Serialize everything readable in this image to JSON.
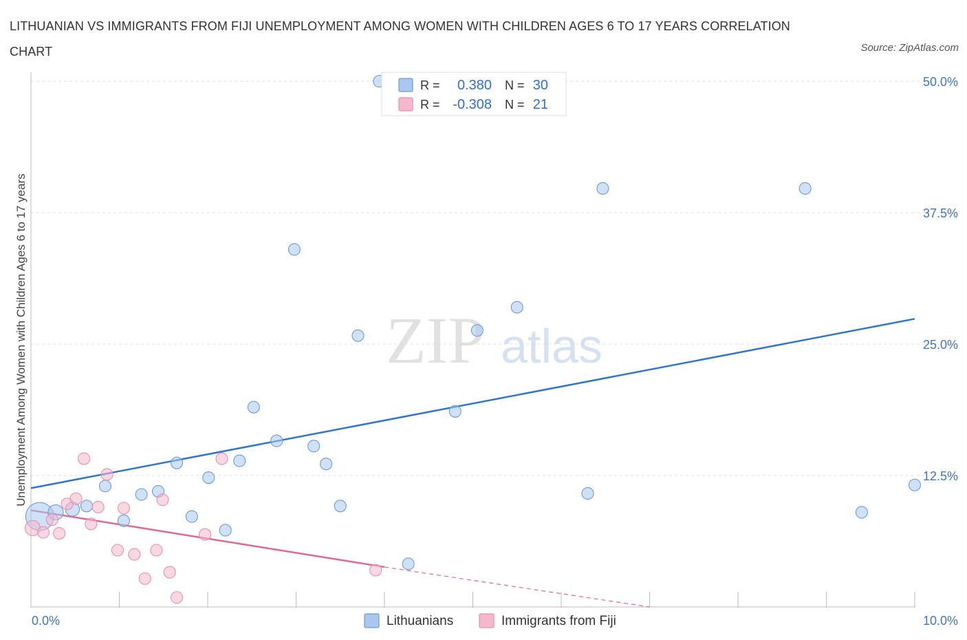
{
  "title": "LITHUANIAN VS IMMIGRANTS FROM FIJI UNEMPLOYMENT AMONG WOMEN WITH CHILDREN AGES 6 TO 17 YEARS CORRELATION CHART",
  "source": "Source: ZipAtlas.com",
  "watermark": {
    "zip": "ZIP",
    "atlas": "atlas"
  },
  "stats_legend": [
    {
      "series": "Lithuanians",
      "r_label": "R =",
      "r_value": "0.380",
      "n_label": "N =",
      "n_value": "30",
      "color": "#a8c8f0"
    },
    {
      "series": "Immigrants from Fiji",
      "r_label": "R =",
      "r_value": "-0.308",
      "n_label": "N =",
      "n_value": "21",
      "color": "#f4b8cb"
    }
  ],
  "bottom_legend": [
    "Lithuanians",
    "Immigrants from Fiji"
  ],
  "chart_data": {
    "type": "scatter",
    "title": "LITHUANIAN VS IMMIGRANTS FROM FIJI UNEMPLOYMENT AMONG WOMEN WITH CHILDREN AGES 6 TO 17 YEARS CORRELATION CHART",
    "xlabel": "",
    "ylabel": "Unemployment Among Women with Children Ages 6 to 17 years",
    "xlim": [
      0,
      10
    ],
    "ylim": [
      0,
      50
    ],
    "x_tick_labels": [
      "0.0%",
      "10.0%"
    ],
    "y_tick_labels": [
      "12.5%",
      "25.0%",
      "37.5%",
      "50.0%"
    ],
    "y_ticks": [
      12.5,
      25.0,
      37.5,
      50.0
    ],
    "grid": true,
    "legend_position": "bottom-center",
    "series": [
      {
        "name": "Lithuanians",
        "color": "#a8c8f0",
        "stroke": "#6d9ad4",
        "line_color": "#2f74d0",
        "trend": {
          "x": [
            0,
            10
          ],
          "y": [
            11.3,
            27.4
          ]
        },
        "points": [
          {
            "x": 0.1,
            "y": 8.6,
            "s": 2.4
          },
          {
            "x": 0.28,
            "y": 9.0,
            "s": 1.3
          },
          {
            "x": 0.47,
            "y": 9.3,
            "s": 1.2
          },
          {
            "x": 0.63,
            "y": 9.6,
            "s": 1.0
          },
          {
            "x": 0.84,
            "y": 11.5,
            "s": 1.0
          },
          {
            "x": 1.05,
            "y": 8.2,
            "s": 1.0
          },
          {
            "x": 1.25,
            "y": 10.7,
            "s": 1.0
          },
          {
            "x": 1.44,
            "y": 11.0,
            "s": 1.0
          },
          {
            "x": 1.65,
            "y": 13.7,
            "s": 1.0
          },
          {
            "x": 1.82,
            "y": 8.6,
            "s": 1.0
          },
          {
            "x": 2.01,
            "y": 12.3,
            "s": 1.0
          },
          {
            "x": 2.2,
            "y": 7.3,
            "s": 1.0
          },
          {
            "x": 2.36,
            "y": 13.9,
            "s": 1.0
          },
          {
            "x": 2.52,
            "y": 19.0,
            "s": 1.0
          },
          {
            "x": 2.78,
            "y": 15.8,
            "s": 1.0
          },
          {
            "x": 2.98,
            "y": 34.0,
            "s": 1.0
          },
          {
            "x": 3.2,
            "y": 15.3,
            "s": 1.0
          },
          {
            "x": 3.34,
            "y": 13.6,
            "s": 1.0
          },
          {
            "x": 3.5,
            "y": 9.6,
            "s": 1.0
          },
          {
            "x": 3.7,
            "y": 25.8,
            "s": 1.0
          },
          {
            "x": 3.94,
            "y": 50.0,
            "s": 1.0
          },
          {
            "x": 4.27,
            "y": 4.1,
            "s": 1.0
          },
          {
            "x": 4.8,
            "y": 18.6,
            "s": 1.0
          },
          {
            "x": 5.05,
            "y": 26.3,
            "s": 1.0
          },
          {
            "x": 5.5,
            "y": 28.5,
            "s": 1.0
          },
          {
            "x": 6.3,
            "y": 10.8,
            "s": 1.0
          },
          {
            "x": 6.47,
            "y": 39.8,
            "s": 1.0
          },
          {
            "x": 8.76,
            "y": 39.8,
            "s": 1.0
          },
          {
            "x": 9.4,
            "y": 9.0,
            "s": 1.0
          },
          {
            "x": 10.0,
            "y": 11.6,
            "s": 1.0
          }
        ]
      },
      {
        "name": "Immigrants from Fiji",
        "color": "#f4b8cb",
        "stroke": "#e690ae",
        "line_color": "#e0678f",
        "trend": {
          "x": [
            0,
            4.0
          ],
          "y": [
            9.2,
            3.8
          ]
        },
        "trend_dashed": {
          "x": [
            4.0,
            7.0
          ],
          "y": [
            3.8,
            0
          ]
        },
        "points": [
          {
            "x": 0.02,
            "y": 7.5,
            "s": 1.3
          },
          {
            "x": 0.14,
            "y": 7.1,
            "s": 1.0
          },
          {
            "x": 0.24,
            "y": 8.3,
            "s": 1.0
          },
          {
            "x": 0.32,
            "y": 7.0,
            "s": 1.0
          },
          {
            "x": 0.41,
            "y": 9.8,
            "s": 1.0
          },
          {
            "x": 0.51,
            "y": 10.3,
            "s": 1.0
          },
          {
            "x": 0.6,
            "y": 14.1,
            "s": 1.0
          },
          {
            "x": 0.68,
            "y": 7.9,
            "s": 1.0
          },
          {
            "x": 0.76,
            "y": 9.5,
            "s": 1.0
          },
          {
            "x": 0.86,
            "y": 12.6,
            "s": 1.0
          },
          {
            "x": 0.98,
            "y": 5.4,
            "s": 1.0
          },
          {
            "x": 1.05,
            "y": 9.4,
            "s": 1.0
          },
          {
            "x": 1.17,
            "y": 5.0,
            "s": 1.0
          },
          {
            "x": 1.29,
            "y": 2.7,
            "s": 1.0
          },
          {
            "x": 1.42,
            "y": 5.4,
            "s": 1.0
          },
          {
            "x": 1.49,
            "y": 10.2,
            "s": 1.0
          },
          {
            "x": 1.57,
            "y": 3.3,
            "s": 1.0
          },
          {
            "x": 1.65,
            "y": 0.9,
            "s": 1.0
          },
          {
            "x": 1.97,
            "y": 6.9,
            "s": 1.0
          },
          {
            "x": 2.16,
            "y": 14.1,
            "s": 1.0
          },
          {
            "x": 3.9,
            "y": 3.5,
            "s": 1.0
          }
        ]
      }
    ]
  }
}
